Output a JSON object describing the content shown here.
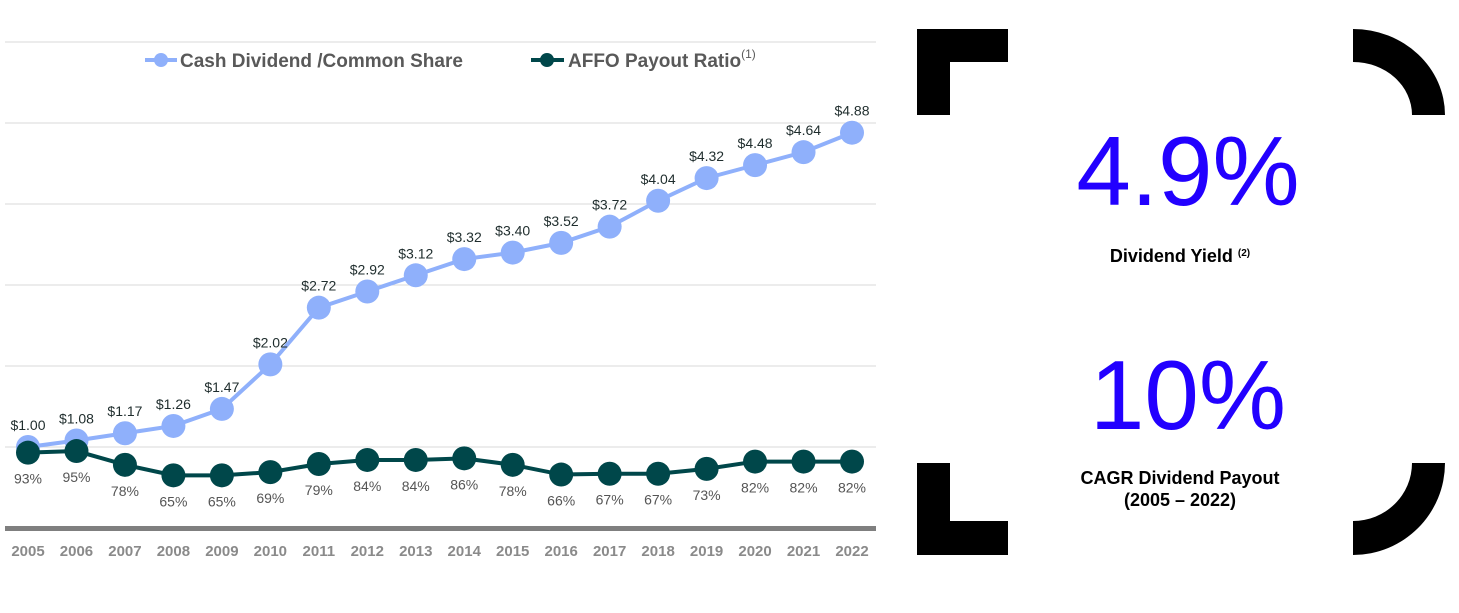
{
  "chart_data": {
    "type": "line",
    "categories": [
      "2005",
      "2006",
      "2007",
      "2008",
      "2009",
      "2010",
      "2011",
      "2012",
      "2013",
      "2014",
      "2015",
      "2016",
      "2017",
      "2018",
      "2019",
      "2020",
      "2021",
      "2022"
    ],
    "series": [
      {
        "name": "Cash Dividend /Common Share",
        "color": "#8fb0fb",
        "values": [
          1.0,
          1.08,
          1.17,
          1.26,
          1.47,
          2.02,
          2.72,
          2.92,
          3.12,
          3.32,
          3.4,
          3.52,
          3.72,
          4.04,
          4.32,
          4.48,
          4.64,
          4.88
        ],
        "labels": [
          "$1.00",
          "$1.08",
          "$1.17",
          "$1.26",
          "$1.47",
          "$2.02",
          "$2.72",
          "$2.92",
          "$3.12",
          "$3.32",
          "$3.40",
          "$3.52",
          "$3.72",
          "$4.04",
          "$4.32",
          "$4.48",
          "$4.64",
          "$4.88"
        ]
      },
      {
        "name": "AFFO Payout Ratio",
        "name_superscript": "(1)",
        "color": "#00474a",
        "values": [
          93,
          95,
          78,
          65,
          65,
          69,
          79,
          84,
          84,
          86,
          78,
          66,
          67,
          67,
          73,
          82,
          82,
          82
        ],
        "labels": [
          "93%",
          "95%",
          "78%",
          "65%",
          "65%",
          "69%",
          "79%",
          "84%",
          "84%",
          "86%",
          "78%",
          "66%",
          "67%",
          "67%",
          "73%",
          "82%",
          "82%",
          "82%"
        ]
      }
    ],
    "ylim": [
      0,
      6
    ],
    "ylim_secondary": [
      0,
      600
    ],
    "grid": true,
    "legend_placement": "top-center"
  },
  "stats": [
    {
      "value": "4.9%",
      "label": "Dividend Yield",
      "superscript": "(2)"
    },
    {
      "value": "10%",
      "label": "CAGR Dividend Payout",
      "sublabel": "(2005 – 2022)"
    }
  ],
  "colors": {
    "stat_value": "#2200ff",
    "bracket": "#000000"
  }
}
